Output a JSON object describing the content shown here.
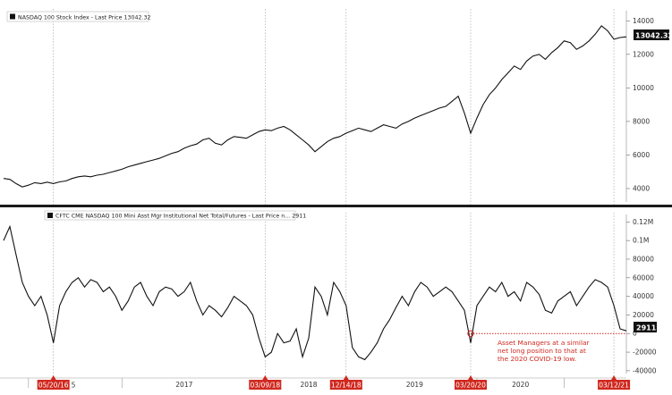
{
  "colors": {
    "line": "#111111",
    "accent": "#d0281f",
    "grid": "#999999",
    "tag_dark": "#111111"
  },
  "chart_data": [
    {
      "type": "line",
      "title": "",
      "legend": "NASDAQ 100 Stock Index - Last Price 13042.32",
      "last_value": "13042.32",
      "y_ticks": [
        "14000",
        "12000",
        "10000",
        "8000",
        "6000",
        "4000"
      ],
      "y_tick_values": [
        14000,
        12000,
        10000,
        8000,
        6000,
        4000
      ],
      "ylim": [
        3200,
        14600
      ],
      "xlim": [
        0,
        100
      ],
      "series": [
        {
          "x": [
            0,
            1,
            2,
            3,
            4,
            5,
            6,
            7,
            8,
            9,
            10,
            11,
            12,
            13,
            14,
            15,
            16,
            17,
            18,
            19,
            20,
            21,
            22,
            23,
            24,
            25,
            26,
            27,
            28,
            29,
            30,
            31,
            32,
            33,
            34,
            35,
            36,
            37,
            38,
            39,
            40,
            41,
            42,
            43,
            44,
            45,
            46,
            47,
            48,
            49,
            50,
            51,
            52,
            53,
            54,
            55,
            56,
            57,
            58,
            59,
            60,
            61,
            62,
            63,
            64,
            65,
            66,
            67,
            68,
            69,
            70,
            71,
            72,
            73,
            74,
            75,
            76,
            77,
            78,
            79,
            80,
            81,
            82,
            83,
            84,
            85,
            86,
            87,
            88,
            89,
            90,
            91,
            92,
            93,
            94,
            95,
            96,
            97,
            98,
            99,
            100
          ],
          "values": [
            4600,
            4550,
            4300,
            4100,
            4200,
            4350,
            4300,
            4380,
            4300,
            4400,
            4450,
            4600,
            4700,
            4750,
            4700,
            4800,
            4850,
            4950,
            5050,
            5150,
            5300,
            5400,
            5500,
            5600,
            5700,
            5800,
            5950,
            6100,
            6200,
            6400,
            6550,
            6650,
            6900,
            7000,
            6700,
            6600,
            6900,
            7100,
            7050,
            7000,
            7200,
            7400,
            7500,
            7450,
            7600,
            7700,
            7500,
            7200,
            6900,
            6600,
            6200,
            6500,
            6800,
            7000,
            7100,
            7300,
            7450,
            7600,
            7500,
            7400,
            7600,
            7800,
            7700,
            7600,
            7850,
            8000,
            8200,
            8350,
            8500,
            8650,
            8800,
            8900,
            9200,
            9500,
            8500,
            7300,
            8200,
            9000,
            9600,
            10000,
            10500,
            10900,
            11300,
            11100,
            11600,
            11900,
            12000,
            11700,
            12100,
            12400,
            12800,
            12700,
            12300,
            12500,
            12800,
            13200,
            13700,
            13400,
            12900,
            13000,
            13042
          ]
        }
      ]
    },
    {
      "type": "line",
      "title": "",
      "legend": "CFTC CME NASDAQ 100 Mini Asst Mgr Institutional Net Total/Futures - Last Price n... 2911",
      "last_value": "2911",
      "y_ticks": [
        "0.12M",
        "0.1M",
        "80000",
        "60000",
        "40000",
        "20000",
        "0",
        "-20000",
        "-40000"
      ],
      "y_tick_values": [
        120000,
        100000,
        80000,
        60000,
        40000,
        20000,
        0,
        -20000,
        -40000
      ],
      "ylim": [
        -43000,
        128000
      ],
      "xlim": [
        0,
        100
      ],
      "series": [
        {
          "x": [
            0,
            1,
            2,
            3,
            4,
            5,
            6,
            7,
            8,
            9,
            10,
            11,
            12,
            13,
            14,
            15,
            16,
            17,
            18,
            19,
            20,
            21,
            22,
            23,
            24,
            25,
            26,
            27,
            28,
            29,
            30,
            31,
            32,
            33,
            34,
            35,
            36,
            37,
            38,
            39,
            40,
            41,
            42,
            43,
            44,
            45,
            46,
            47,
            48,
            49,
            50,
            51,
            52,
            53,
            54,
            55,
            56,
            57,
            58,
            59,
            60,
            61,
            62,
            63,
            64,
            65,
            66,
            67,
            68,
            69,
            70,
            71,
            72,
            73,
            74,
            75,
            76,
            77,
            78,
            79,
            80,
            81,
            82,
            83,
            84,
            85,
            86,
            87,
            88,
            89,
            90,
            91,
            92,
            93,
            94,
            95,
            96,
            97,
            98,
            99,
            100
          ],
          "values": [
            100000,
            115000,
            85000,
            55000,
            40000,
            30000,
            40000,
            20000,
            -10000,
            30000,
            45000,
            55000,
            60000,
            50000,
            58000,
            55000,
            45000,
            50000,
            40000,
            25000,
            35000,
            50000,
            55000,
            40000,
            30000,
            45000,
            50000,
            48000,
            40000,
            45000,
            55000,
            35000,
            20000,
            30000,
            25000,
            18000,
            28000,
            40000,
            35000,
            30000,
            20000,
            -5000,
            -25000,
            -20000,
            0,
            -10000,
            -8000,
            5000,
            -25000,
            -5000,
            50000,
            40000,
            20000,
            55000,
            45000,
            30000,
            -15000,
            -25000,
            -28000,
            -20000,
            -10000,
            5000,
            15000,
            28000,
            40000,
            30000,
            45000,
            55000,
            50000,
            40000,
            45000,
            50000,
            45000,
            35000,
            25000,
            -10000,
            30000,
            40000,
            50000,
            45000,
            55000,
            40000,
            45000,
            35000,
            55000,
            50000,
            42000,
            25000,
            22000,
            35000,
            40000,
            45000,
            30000,
            40000,
            50000,
            58000,
            55000,
            50000,
            30000,
            5000,
            2911
          ]
        }
      ],
      "annotation": {
        "lines": [
          "Asset Managers at a similar",
          "net long position to that at",
          "the 2020 COVID-19 low."
        ],
        "marker_value": 0,
        "marker_x": 75
      }
    }
  ],
  "x_axis": {
    "year_labels": [
      {
        "label": "2017",
        "x": 29
      },
      {
        "label": "2018",
        "x": 49
      },
      {
        "label": "2019",
        "x": 66
      },
      {
        "label": "2020",
        "x": 83
      }
    ],
    "year_separators": [
      4,
      19,
      42,
      55,
      76,
      90
    ],
    "date_tags": [
      {
        "label": "05/20/16",
        "x": 8
      },
      {
        "label": "03/09/18",
        "x": 42
      },
      {
        "label": "12/14/18",
        "x": 55
      },
      {
        "label": "03/20/20",
        "x": 75
      },
      {
        "label": "03/12/21",
        "x": 98
      }
    ],
    "tag_suffix": "5"
  }
}
